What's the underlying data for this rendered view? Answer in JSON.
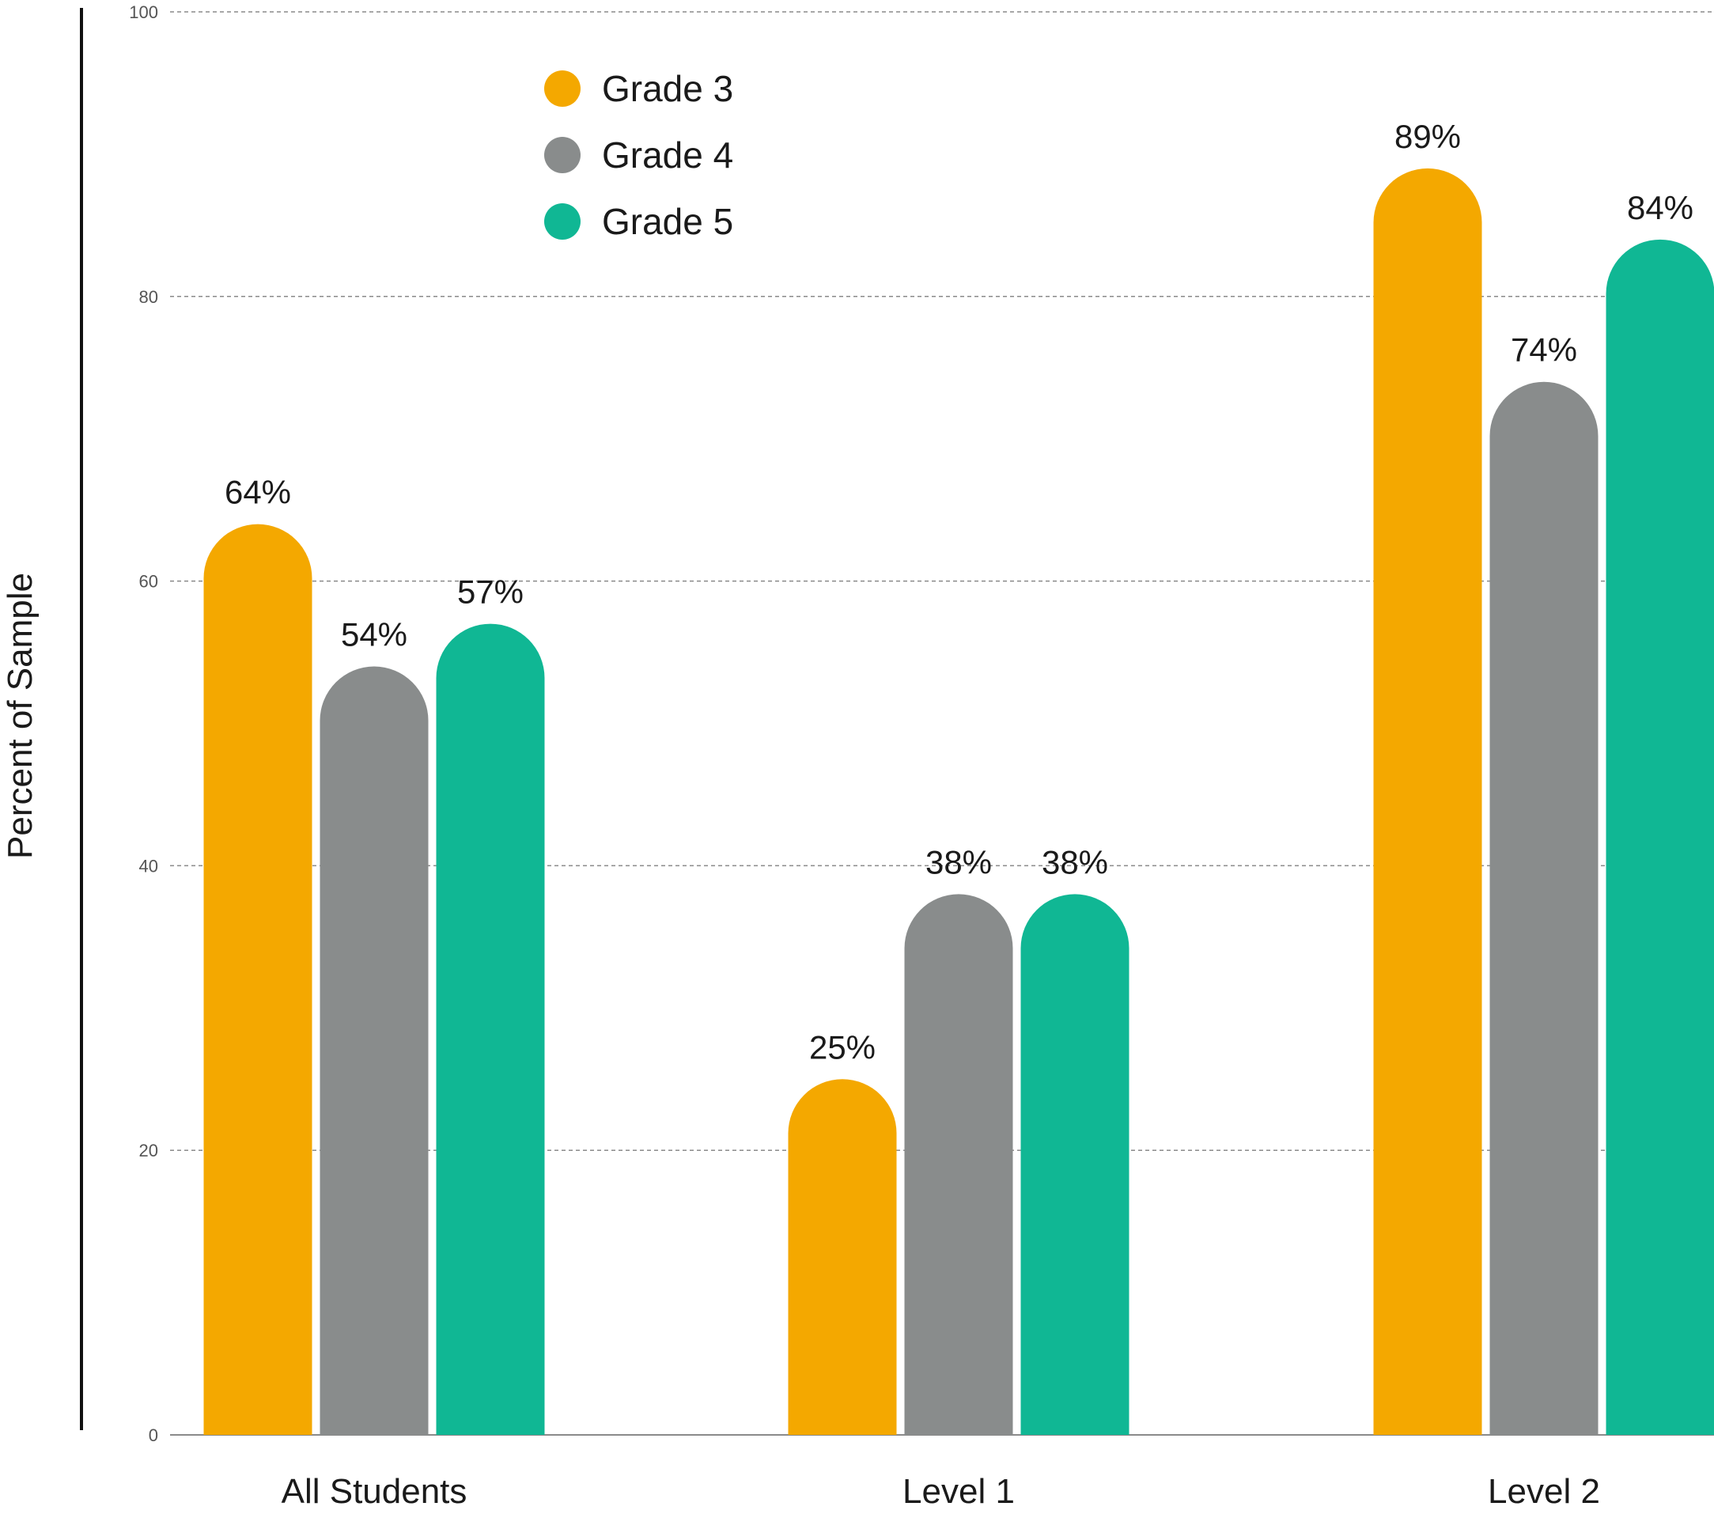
{
  "chart_data": {
    "type": "bar",
    "ylabel": "Percent of Sample",
    "ylim": [
      0,
      100
    ],
    "yticks": [
      0,
      20,
      40,
      60,
      80,
      100
    ],
    "grid": true,
    "legend_position": "top-left",
    "categories": [
      "All Students",
      "Level 1",
      "Level 2"
    ],
    "series": [
      {
        "name": "Grade 3",
        "color": "#F4A800",
        "values": [
          64,
          25,
          89
        ],
        "labels": [
          "64%",
          "25%",
          "89%"
        ]
      },
      {
        "name": "Grade 4",
        "color": "#898C8C",
        "values": [
          54,
          38,
          74
        ],
        "labels": [
          "54%",
          "38%",
          "74%"
        ]
      },
      {
        "name": "Grade 5",
        "color": "#10B794",
        "values": [
          57,
          38,
          84
        ],
        "labels": [
          "57%",
          "38%",
          "84%"
        ]
      }
    ]
  }
}
